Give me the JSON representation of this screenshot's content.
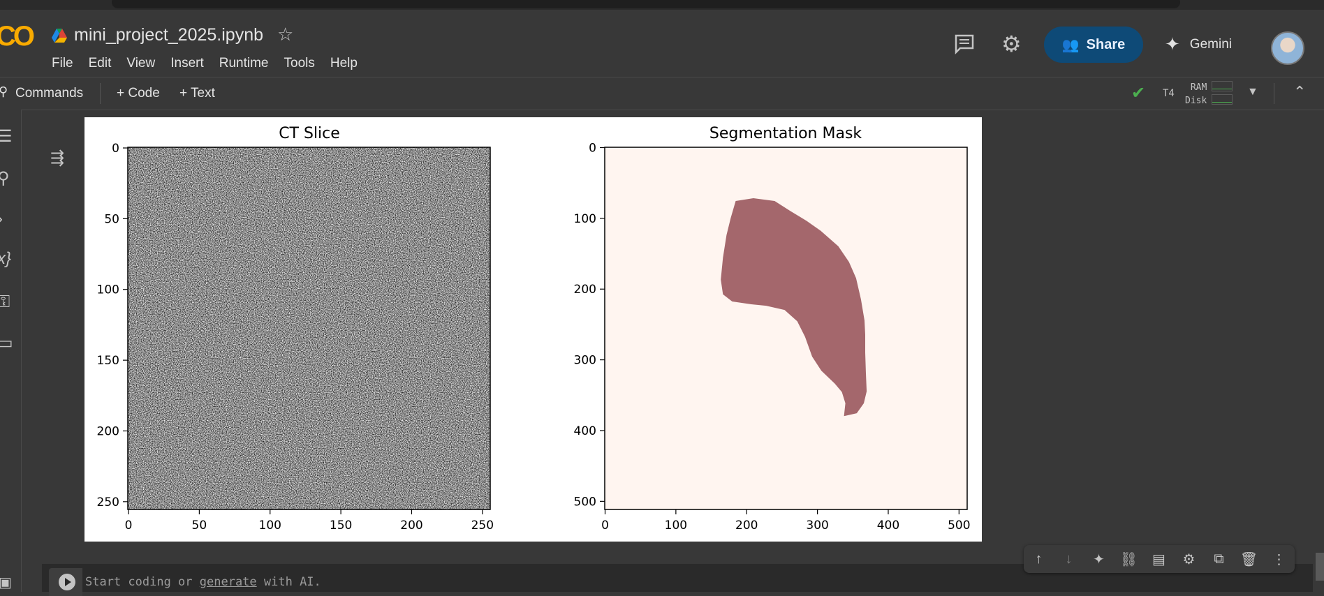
{
  "app": {
    "logo": "CO",
    "title": "mini_project_2025.ipynb"
  },
  "menu": [
    "File",
    "Edit",
    "View",
    "Insert",
    "Runtime",
    "Tools",
    "Help"
  ],
  "header_actions": {
    "share": "Share",
    "gemini": "Gemini"
  },
  "toolbar": {
    "commands": "Commands",
    "add_code": "+ Code",
    "add_text": "+ Text",
    "runtime_type": "T4",
    "ram_label": "RAM",
    "disk_label": "Disk"
  },
  "cell": {
    "placeholder_start": "Start coding or ",
    "placeholder_link": "generate",
    "placeholder_end": " with AI."
  },
  "icons": {
    "rail": [
      "table-of-contents-icon",
      "find-replace-icon",
      "code-snippets-icon",
      "variables-icon",
      "secrets-key-icon",
      "files-folder-icon"
    ],
    "cell_toolbar": [
      "move-up-icon",
      "move-down-icon",
      "gemini-sparkle-icon",
      "link-icon",
      "comment-icon",
      "settings-icon",
      "open-in-tab-icon",
      "delete-icon",
      "more-vert-icon"
    ]
  },
  "colors": {
    "share_bg": "#0e4a77",
    "mask_color": "#a4676c",
    "mask_bg": "#fff5f0",
    "status_ok": "#4caf50"
  },
  "chart_data": [
    {
      "type": "heatmap",
      "title": "CT Slice",
      "description_of_values": "random noise grayscale image",
      "size": [
        256,
        256
      ],
      "xticks": [
        0,
        50,
        100,
        150,
        200,
        250
      ],
      "yticks": [
        0,
        50,
        100,
        150,
        200,
        250
      ],
      "colormap": "gray"
    },
    {
      "type": "heatmap",
      "title": "Segmentation Mask",
      "size": [
        512,
        512
      ],
      "xticks": [
        0,
        100,
        200,
        300,
        400,
        500
      ],
      "yticks": [
        0,
        100,
        200,
        300,
        400,
        500
      ],
      "colormap": "Reds (binary mask)",
      "mask_outline": [
        [
          185,
          76
        ],
        [
          210,
          72
        ],
        [
          240,
          76
        ],
        [
          262,
          90
        ],
        [
          285,
          104
        ],
        [
          305,
          118
        ],
        [
          330,
          140
        ],
        [
          345,
          162
        ],
        [
          355,
          185
        ],
        [
          362,
          215
        ],
        [
          367,
          245
        ],
        [
          368,
          265
        ],
        [
          368,
          290
        ],
        [
          369,
          320
        ],
        [
          370,
          345
        ],
        [
          366,
          362
        ],
        [
          356,
          376
        ],
        [
          338,
          380
        ],
        [
          340,
          362
        ],
        [
          335,
          346
        ],
        [
          325,
          334
        ],
        [
          306,
          316
        ],
        [
          293,
          296
        ],
        [
          283,
          268
        ],
        [
          272,
          246
        ],
        [
          254,
          230
        ],
        [
          228,
          224
        ],
        [
          207,
          222
        ],
        [
          180,
          218
        ],
        [
          167,
          208
        ],
        [
          164,
          187
        ],
        [
          167,
          156
        ],
        [
          172,
          124
        ],
        [
          178,
          100
        ]
      ]
    }
  ]
}
